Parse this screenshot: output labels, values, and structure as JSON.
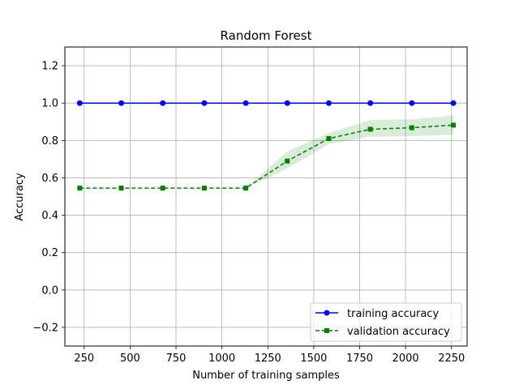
{
  "chart_data": {
    "type": "line",
    "title": "Random Forest",
    "xlabel": "Number of training samples",
    "ylabel": "Accuracy",
    "xlim": [
      145,
      2335
    ],
    "ylim": [
      -0.3,
      1.3
    ],
    "xticks": [
      250,
      500,
      750,
      1000,
      1250,
      1500,
      1750,
      2000,
      2250
    ],
    "yticks": [
      -0.2,
      0.0,
      0.2,
      0.4,
      0.6,
      0.8,
      1.0,
      1.2
    ],
    "xtick_labels": [
      "250",
      "500",
      "750",
      "1000",
      "1250",
      "1500",
      "1750",
      "2000",
      "2250"
    ],
    "ytick_labels": [
      "−0.2",
      "0.0",
      "0.2",
      "0.4",
      "0.6",
      "0.8",
      "1.0",
      "1.2"
    ],
    "grid": true,
    "legend_position": "lower-right",
    "x": [
      226,
      452,
      678,
      904,
      1130,
      1356,
      1582,
      1808,
      2034,
      2260
    ],
    "series": [
      {
        "name": "training accuracy",
        "color": "#0000ff",
        "line_style": "solid",
        "marker": "circle",
        "values": [
          1.0,
          1.0,
          1.0,
          1.0,
          1.0,
          1.0,
          1.0,
          1.0,
          1.0,
          1.0
        ],
        "band_lower": [
          1.0,
          1.0,
          1.0,
          1.0,
          1.0,
          1.0,
          1.0,
          1.0,
          1.0,
          1.0
        ],
        "band_upper": [
          1.0,
          1.0,
          1.0,
          1.0,
          1.0,
          1.0,
          1.0,
          1.0,
          1.0,
          1.0
        ]
      },
      {
        "name": "validation accuracy",
        "color": "#008000",
        "line_style": "dashed",
        "marker": "square",
        "values": [
          0.545,
          0.545,
          0.545,
          0.545,
          0.545,
          0.69,
          0.81,
          0.86,
          0.868,
          0.882
        ],
        "band_lower": [
          0.545,
          0.545,
          0.545,
          0.545,
          0.545,
          0.65,
          0.78,
          0.82,
          0.823,
          0.83
        ],
        "band_upper": [
          0.545,
          0.545,
          0.545,
          0.545,
          0.545,
          0.74,
          0.84,
          0.91,
          0.913,
          0.934
        ]
      }
    ]
  }
}
